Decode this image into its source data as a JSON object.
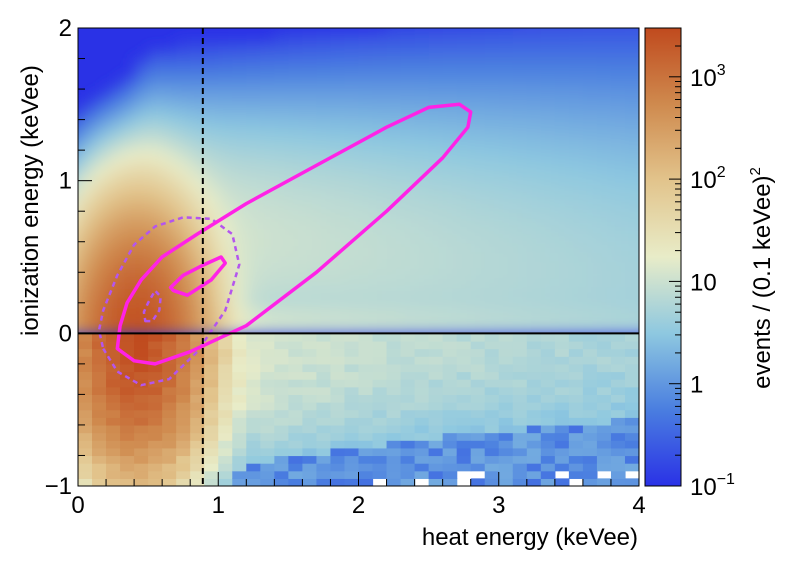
{
  "chart_data": {
    "type": "heatmap",
    "title": "",
    "xlabel": "heat energy (keVee)",
    "ylabel": "ionization energy (keVee)",
    "zlabel_main": "events / (0.1 keVee)",
    "zlabel_sup": "2",
    "xlim": [
      0,
      4
    ],
    "ylim": [
      -1,
      2
    ],
    "zlim": [
      0.1,
      3000
    ],
    "z_scale": "log",
    "x_ticks": [
      {
        "value": 0,
        "label": "0"
      },
      {
        "value": 1,
        "label": "1"
      },
      {
        "value": 2,
        "label": "2"
      },
      {
        "value": 3,
        "label": "3"
      },
      {
        "value": 4,
        "label": "4"
      }
    ],
    "y_ticks": [
      {
        "value": -1,
        "label": "−1"
      },
      {
        "value": 0,
        "label": "0"
      },
      {
        "value": 1,
        "label": "1"
      },
      {
        "value": 2,
        "label": "2"
      }
    ],
    "z_ticks": [
      {
        "value": 0.1,
        "base": "10",
        "exp": "−1"
      },
      {
        "value": 1,
        "base": "1",
        "exp": ""
      },
      {
        "value": 10,
        "base": "10",
        "exp": ""
      },
      {
        "value": 100,
        "base": "10",
        "exp": "2"
      },
      {
        "value": 1000,
        "base": "10",
        "exp": "3"
      }
    ],
    "colors": {
      "colorscale": [
        "#2a32e6",
        "#4a7ee0",
        "#8ec8e0",
        "#e8ecc8",
        "#e2c48c",
        "#cf8a4e",
        "#c04a1e"
      ],
      "contour_solid": "#ff22e6",
      "contour_dashed": "#b455ee",
      "threshold": "#000000"
    },
    "threshold_x": 0.89,
    "zero_line_y": 0,
    "contours_solid": [
      {
        "x": [
          0.28,
          0.4,
          0.55,
          0.8,
          1.2,
          1.7,
          2.2,
          2.6,
          2.78,
          2.8,
          2.72,
          2.5,
          2.2,
          1.7,
          1.2,
          0.85,
          0.6,
          0.45,
          0.35,
          0.3,
          0.28
        ],
        "y": [
          -0.1,
          -0.18,
          -0.2,
          -0.12,
          0.05,
          0.4,
          0.8,
          1.15,
          1.35,
          1.45,
          1.5,
          1.48,
          1.35,
          1.1,
          0.85,
          0.65,
          0.5,
          0.35,
          0.2,
          0.05,
          -0.1
        ]
      },
      {
        "x": [
          0.68,
          0.78,
          0.95,
          1.05,
          1.02,
          0.9,
          0.75,
          0.66,
          0.68
        ],
        "y": [
          0.28,
          0.25,
          0.35,
          0.46,
          0.5,
          0.45,
          0.38,
          0.3,
          0.28
        ]
      }
    ],
    "contours_dashed": [
      {
        "x": [
          0.18,
          0.28,
          0.45,
          0.65,
          0.85,
          1.05,
          1.15,
          1.1,
          0.95,
          0.75,
          0.55,
          0.4,
          0.28,
          0.18,
          0.15,
          0.18
        ],
        "y": [
          -0.1,
          -0.25,
          -0.34,
          -0.3,
          -0.12,
          0.15,
          0.45,
          0.65,
          0.75,
          0.76,
          0.7,
          0.58,
          0.38,
          0.15,
          0.02,
          -0.1
        ]
      },
      {
        "x": [
          0.48,
          0.53,
          0.58,
          0.59,
          0.55,
          0.5,
          0.47,
          0.48
        ],
        "y": [
          0.08,
          0.08,
          0.15,
          0.24,
          0.28,
          0.2,
          0.14,
          0.08
        ]
      }
    ]
  }
}
